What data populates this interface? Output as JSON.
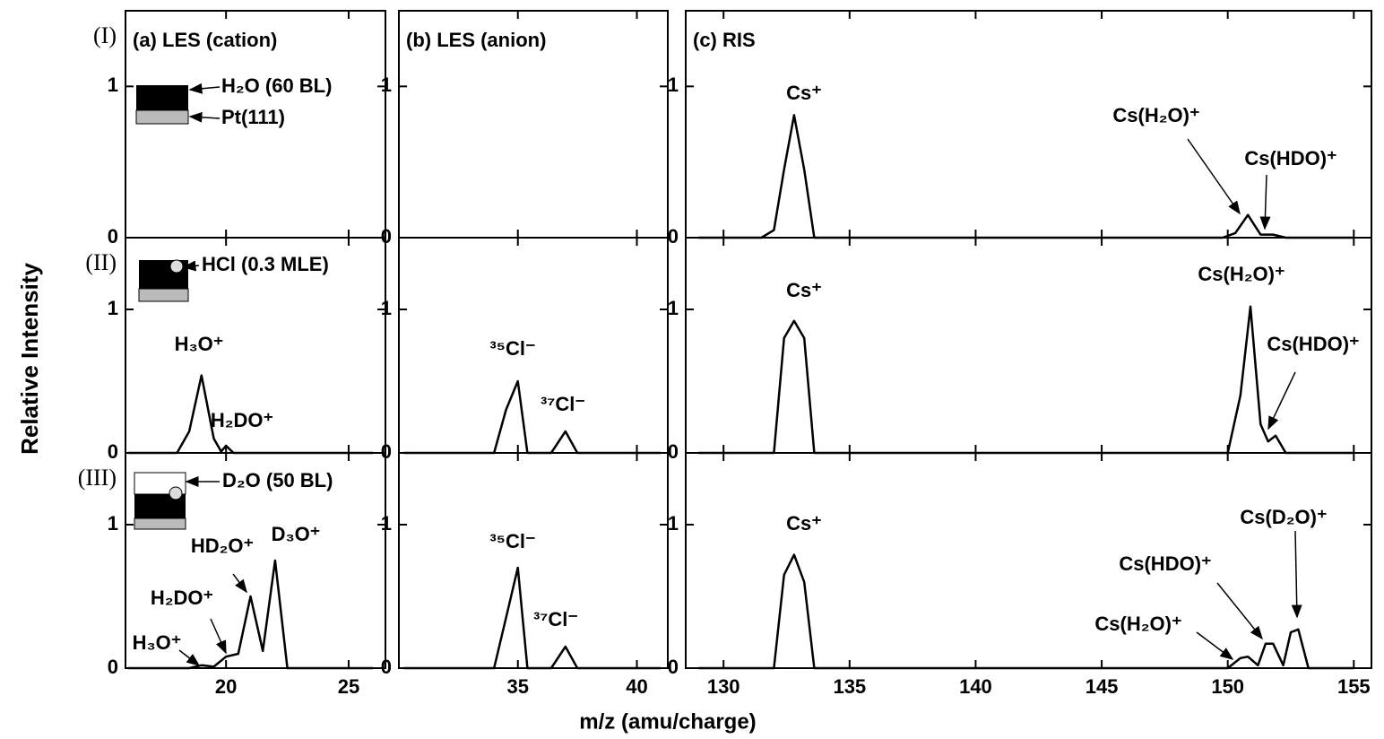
{
  "chart_data": [
    {
      "type": "line",
      "title": "(a) LES (cation)",
      "row_label": "(I)",
      "xlim": [
        15.9,
        26.5
      ],
      "ylim": [
        0,
        1.5
      ],
      "yticks": [
        0,
        1
      ],
      "annotations": [
        "H₂O (60 BL)",
        "Pt(111)"
      ]
    },
    {
      "type": "line",
      "title": "(b) LES (anion)",
      "xlim": [
        30,
        41.3
      ],
      "ylim": [
        0,
        1.5
      ],
      "yticks": [
        0,
        1
      ]
    },
    {
      "type": "line",
      "title": "(c) RIS",
      "xlim": [
        128.5,
        155.7
      ],
      "ylim": [
        0,
        1.5
      ],
      "yticks": [
        0,
        1
      ],
      "color": "#000000",
      "x": [
        129,
        131.5,
        132,
        132.4,
        132.8,
        133.2,
        133.6,
        134,
        149.8,
        150.3,
        150.8,
        151.3,
        151.8,
        152.3,
        155
      ],
      "values": [
        0,
        0,
        0.05,
        0.45,
        0.81,
        0.45,
        0,
        0,
        0,
        0.03,
        0.15,
        0.02,
        0.02,
        0,
        0
      ],
      "annotations": [
        "Cs⁺",
        "Cs(H₂O)⁺",
        "Cs(HDO)⁺"
      ]
    },
    {
      "type": "line",
      "row_label": "(II)",
      "xlim": [
        15.9,
        26.5
      ],
      "ylim": [
        0,
        1.5
      ],
      "yticks": [
        0,
        1
      ],
      "color": "#000000",
      "x": [
        16,
        18,
        18.5,
        19,
        19.5,
        19.8,
        20,
        20.3,
        21,
        26
      ],
      "values": [
        0,
        0,
        0.15,
        0.54,
        0.1,
        0.01,
        0.05,
        0,
        0,
        0
      ],
      "annotations": [
        "HCl (0.3 MLE)",
        "H₃O⁺",
        "H₂DO⁺"
      ]
    },
    {
      "type": "line",
      "xlim": [
        30,
        41.3
      ],
      "ylim": [
        0,
        1.5
      ],
      "yticks": [
        0,
        1
      ],
      "color": "#000000",
      "x": [
        30.2,
        34,
        34.5,
        35,
        35.4,
        36.4,
        37,
        37.5,
        41
      ],
      "values": [
        0,
        0,
        0.3,
        0.5,
        0,
        0,
        0.15,
        0,
        0
      ],
      "annotations": [
        "³⁵Cl⁻",
        "³⁷Cl⁻"
      ],
      "ylabel": "Relative Intensity"
    },
    {
      "type": "line",
      "xlim": [
        128.5,
        155.7
      ],
      "ylim": [
        0,
        1.5
      ],
      "yticks": [
        0,
        1
      ],
      "color": "#000000",
      "x": [
        129,
        132,
        132.4,
        132.8,
        133.2,
        133.6,
        150,
        150.5,
        150.9,
        151.3,
        151.6,
        151.9,
        152.3,
        155
      ],
      "values": [
        0,
        0,
        0.8,
        0.92,
        0.8,
        0,
        0,
        0.4,
        1.02,
        0.2,
        0.08,
        0.12,
        0,
        0
      ],
      "annotations": [
        "Cs⁺",
        "Cs(H₂O)⁺",
        "Cs(HDO)⁺"
      ]
    },
    {
      "type": "line",
      "row_label": "(III)",
      "xlim": [
        15.9,
        26.5
      ],
      "ylim": [
        0,
        1.5
      ],
      "yticks": [
        0,
        1
      ],
      "xticks": [
        20,
        25
      ],
      "color": "#000000",
      "x": [
        16,
        18.5,
        19,
        19.5,
        20,
        20.5,
        21,
        21.5,
        22,
        22.5,
        26
      ],
      "values": [
        0,
        0,
        0.02,
        0.01,
        0.08,
        0.1,
        0.5,
        0.12,
        0.75,
        0,
        0
      ],
      "annotations": [
        "D₂O (50 BL)",
        "D₃O⁺",
        "HD₂O⁺",
        "H₂DO⁺",
        "H₃O⁺"
      ]
    },
    {
      "type": "line",
      "xlim": [
        30,
        41.3
      ],
      "ylim": [
        0,
        1.5
      ],
      "yticks": [
        0,
        1
      ],
      "xticks": [
        35,
        40
      ],
      "color": "#000000",
      "x": [
        30.2,
        34,
        34.5,
        35,
        35.4,
        36.4,
        37,
        37.5,
        41
      ],
      "values": [
        0,
        0,
        0.35,
        0.7,
        0,
        0,
        0.15,
        0,
        0
      ],
      "annotations": [
        "³⁵Cl⁻",
        "³⁷Cl⁻"
      ],
      "xlabel": "m/z (amu/charge)"
    },
    {
      "type": "line",
      "xlim": [
        128.5,
        155.7
      ],
      "ylim": [
        0,
        1.5
      ],
      "yticks": [
        0,
        1
      ],
      "xticks": [
        130,
        135,
        140,
        145,
        150,
        155
      ],
      "color": "#000000",
      "x": [
        129,
        132,
        132.4,
        132.8,
        133.2,
        133.6,
        150,
        150.5,
        150.8,
        151.2,
        151.5,
        151.8,
        152.2,
        152.5,
        152.8,
        153.2,
        155
      ],
      "values": [
        0,
        0,
        0.65,
        0.79,
        0.6,
        0,
        0,
        0.07,
        0.08,
        0.02,
        0.17,
        0.17,
        0.02,
        0.25,
        0.27,
        0,
        0
      ],
      "annotations": [
        "Cs⁺",
        "Cs(D₂O)⁺",
        "Cs(HDO)⁺",
        "Cs(H₂O)⁺"
      ]
    }
  ]
}
